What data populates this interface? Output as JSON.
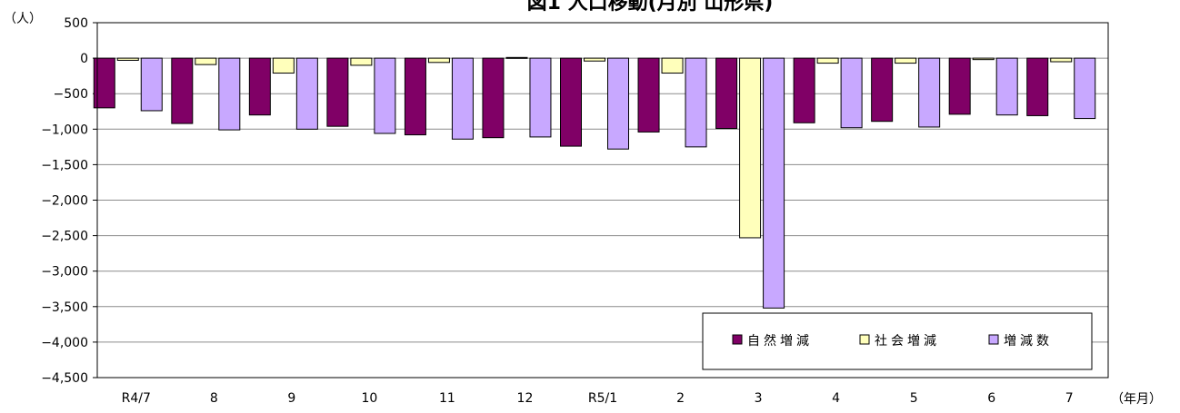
{
  "chart_data": {
    "type": "bar",
    "title": "図1 人口移動(月別 山形県)",
    "y_unit_label": "（人）",
    "x_unit_label": "（年月）",
    "categories": [
      "R4/7",
      "8",
      "9",
      "10",
      "11",
      "12",
      "R5/1",
      "2",
      "3",
      "4",
      "5",
      "6",
      "7"
    ],
    "ylim": [
      -4500,
      500
    ],
    "yticks": [
      500,
      0,
      -500,
      -1000,
      -1500,
      -2000,
      -2500,
      -3000,
      -3500,
      -4000,
      -4500
    ],
    "ytick_labels": [
      "500",
      "0",
      "−500",
      "−1,000",
      "−1,500",
      "−2,000",
      "−2,500",
      "−3,000",
      "−3,500",
      "−4,000",
      "−4,500"
    ],
    "grid": true,
    "legend_position": "bottom-right",
    "series": [
      {
        "name": "自然増減",
        "color": "#800066",
        "values": [
          -700,
          -920,
          -800,
          -960,
          -1080,
          -1120,
          -1240,
          -1040,
          -990,
          -910,
          -890,
          -790,
          -810
        ]
      },
      {
        "name": "社会増減",
        "color": "#FFFFBB",
        "values": [
          -30,
          -90,
          -210,
          -100,
          -60,
          10,
          -40,
          -210,
          -2530,
          -70,
          -70,
          -20,
          -50
        ]
      },
      {
        "name": "増減数",
        "color": "#C8A8FF",
        "values": [
          -740,
          -1010,
          -1000,
          -1060,
          -1140,
          -1110,
          -1280,
          -1250,
          -3520,
          -980,
          -970,
          -800,
          -850
        ]
      }
    ]
  }
}
